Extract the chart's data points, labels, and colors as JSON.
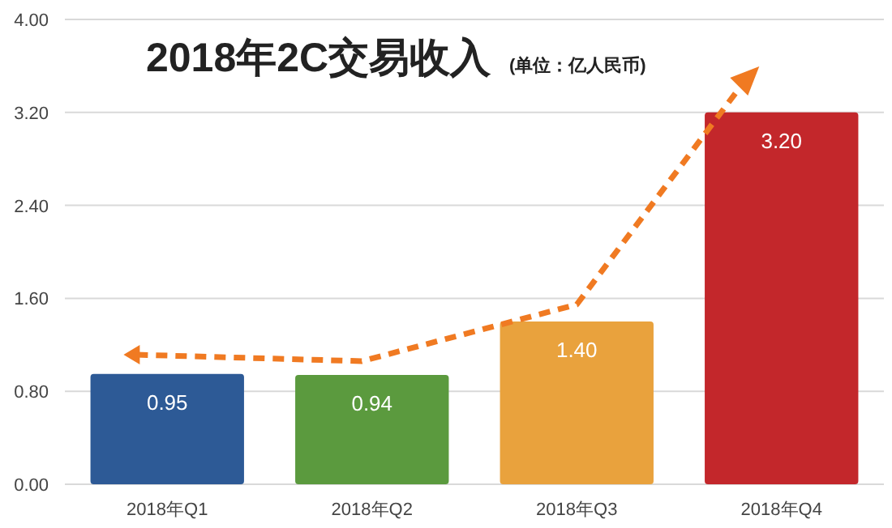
{
  "chart_data": {
    "type": "bar",
    "title": "2018年2C交易收入",
    "subtitle": "(单位：亿人民币)",
    "categories": [
      "2018年Q1",
      "2018年Q2",
      "2018年Q3",
      "2018年Q4"
    ],
    "values": [
      0.95,
      0.94,
      1.4,
      3.2
    ],
    "value_labels": [
      "0.95",
      "0.94",
      "1.40",
      "3.20"
    ],
    "colors": [
      "#2d5a96",
      "#5b9a3e",
      "#e9a23d",
      "#c3272b"
    ],
    "ylim": [
      0,
      4
    ],
    "yticks": [
      {
        "value": 0,
        "label": "0.00"
      },
      {
        "value": 0.8,
        "label": "0.80"
      },
      {
        "value": 1.6,
        "label": "1.60"
      },
      {
        "value": 2.4,
        "label": "2.40"
      },
      {
        "value": 3.2,
        "label": "3.20"
      },
      {
        "value": 4,
        "label": "4.00"
      }
    ],
    "grid": "y"
  }
}
